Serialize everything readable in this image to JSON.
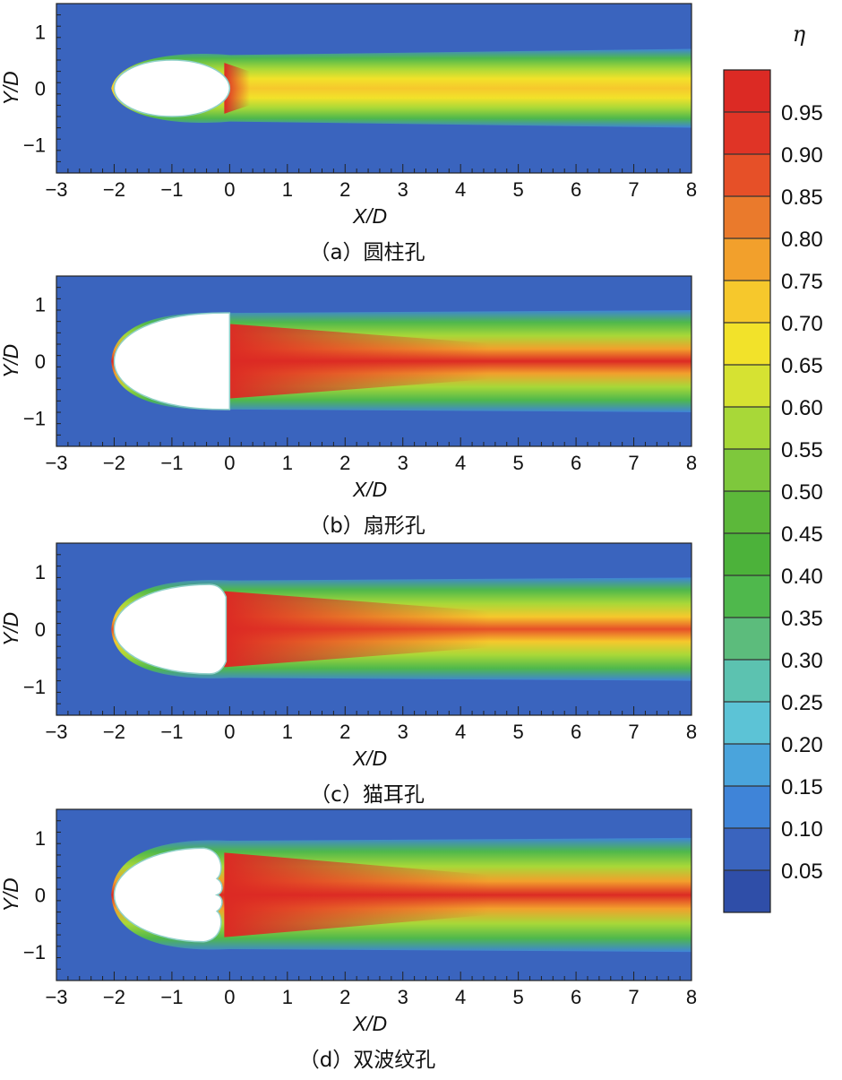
{
  "chart_data": {
    "type": "heatmap",
    "colorbar": {
      "title": "η",
      "ticks": [
        "0.95",
        "0.90",
        "0.85",
        "0.80",
        "0.75",
        "0.70",
        "0.65",
        "0.60",
        "0.55",
        "0.50",
        "0.45",
        "0.40",
        "0.35",
        "0.30",
        "0.25",
        "0.20",
        "0.15",
        "0.10",
        "0.05"
      ],
      "range": [
        0.0,
        1.0
      ],
      "colors": [
        "#2f4ea8",
        "#3a64be",
        "#3f84d8",
        "#4aa4dc",
        "#5cc3d6",
        "#5cc2b0",
        "#5cbc7c",
        "#4fb84c",
        "#4cb23a",
        "#5cb83a",
        "#7ec83c",
        "#a8d838",
        "#d6e232",
        "#f2e22a",
        "#f6c82c",
        "#f2a02c",
        "#ea7a2c",
        "#e65028",
        "#e03426",
        "#dc2a24"
      ]
    },
    "panels": [
      {
        "caption": "（a）圆柱孔",
        "xlabel": "X/D",
        "ylabel": "Y/D",
        "xlim": [
          -3,
          8
        ],
        "ylim": [
          -1.5,
          1.5
        ],
        "xticks": [
          "−3",
          "−2",
          "−1",
          "0",
          "1",
          "2",
          "3",
          "4",
          "5",
          "6",
          "7",
          "8"
        ],
        "yticks": [
          "1",
          "0",
          "−1"
        ],
        "hole_shape": "ellipse",
        "peak_eta": 0.72,
        "near_hole_eta": 0.95,
        "jet_halfwidth": [
          0.62,
          0.7
        ],
        "background_eta": 0.08
      },
      {
        "caption": "（b）扇形孔",
        "xlabel": "X/D",
        "ylabel": "Y/D",
        "xlim": [
          -3,
          8
        ],
        "ylim": [
          -1.5,
          1.5
        ],
        "xticks": [
          "−3",
          "−2",
          "−1",
          "0",
          "1",
          "2",
          "3",
          "4",
          "5",
          "6",
          "7",
          "8"
        ],
        "yticks": [
          "1",
          "0",
          "−1"
        ],
        "hole_shape": "fan",
        "peak_eta": 0.95,
        "near_hole_eta": 0.97,
        "jet_halfwidth": [
          0.85,
          0.9
        ],
        "background_eta": 0.08
      },
      {
        "caption": "（c）猫耳孔",
        "xlabel": "X/D",
        "ylabel": "Y/D",
        "xlim": [
          -3,
          8
        ],
        "ylim": [
          -1.5,
          1.5
        ],
        "xticks": [
          "−3",
          "−2",
          "−1",
          "0",
          "1",
          "2",
          "3",
          "4",
          "5",
          "6",
          "7",
          "8"
        ],
        "yticks": [
          "1",
          "0",
          "−1"
        ],
        "hole_shape": "cat-ear",
        "peak_eta": 0.85,
        "near_hole_eta": 0.97,
        "jet_halfwidth": [
          0.85,
          0.9
        ],
        "background_eta": 0.08
      },
      {
        "caption": "（d）双波纹孔",
        "xlabel": "X/D",
        "ylabel": "Y/D",
        "xlim": [
          -3,
          8
        ],
        "ylim": [
          -1.5,
          1.5
        ],
        "xticks": [
          "−3",
          "−2",
          "−1",
          "0",
          "1",
          "2",
          "3",
          "4",
          "5",
          "6",
          "7",
          "8"
        ],
        "yticks": [
          "1",
          "0",
          "−1"
        ],
        "hole_shape": "double-wave",
        "peak_eta": 0.95,
        "near_hole_eta": 0.97,
        "jet_halfwidth": [
          0.95,
          1.0
        ],
        "background_eta": 0.08
      }
    ]
  }
}
